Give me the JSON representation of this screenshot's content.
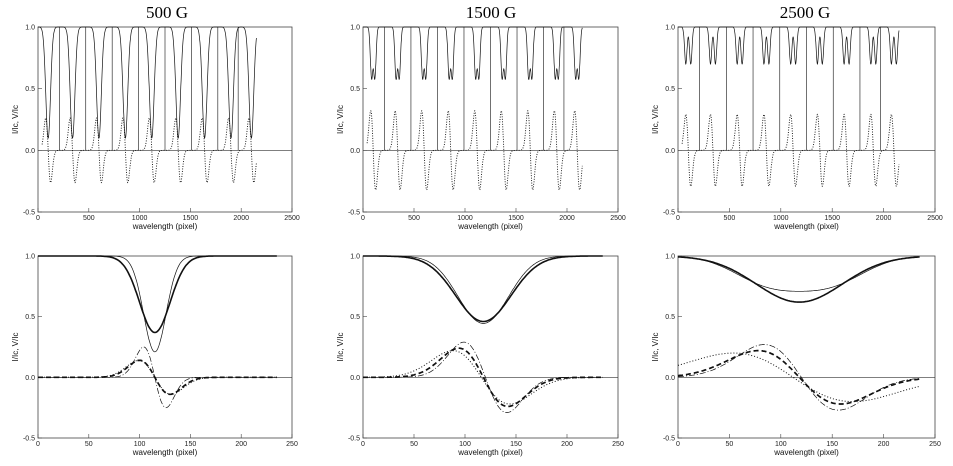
{
  "column_titles": [
    "500 G",
    "1500 G",
    "2500 G"
  ],
  "chart_data": [
    {
      "type": "line",
      "panel": "top",
      "column": 0,
      "title": "500 G",
      "xlabel": "wavelength (pixel)",
      "ylabel": "I/Ic, V/Ic",
      "xlim": [
        0,
        2500
      ],
      "ylim": [
        -0.5,
        1.0
      ],
      "xticks": [
        "0",
        "500",
        "1000",
        "1500",
        "2000",
        "2500"
      ],
      "yticks": [
        "-0.5",
        "0.0",
        "0.5",
        "1.0"
      ],
      "line_centers": [
        100,
        340,
        600,
        860,
        1120,
        1380,
        1640,
        1900,
        2100
      ],
      "intensity_core": 0.1,
      "stokes_v_amplitude": 0.27
    },
    {
      "type": "line",
      "panel": "top",
      "column": 1,
      "title": "1500 G",
      "xlabel": "wavelength (pixel)",
      "ylabel": "I/Ic, V/Ic",
      "xlim": [
        0,
        2500
      ],
      "ylim": [
        -0.5,
        1.0
      ],
      "xticks": [
        "0",
        "500",
        "1000",
        "1500",
        "2000",
        "2500"
      ],
      "yticks": [
        "-0.5",
        "0.0",
        "0.5",
        "1.0"
      ],
      "line_centers": [
        100,
        340,
        600,
        860,
        1120,
        1380,
        1640,
        1900,
        2100
      ],
      "intensity_core": 0.45,
      "stokes_v_amplitude": 0.33
    },
    {
      "type": "line",
      "panel": "top",
      "column": 2,
      "title": "2500 G",
      "xlabel": "wavelength (pixel)",
      "ylabel": "I/Ic, V/Ic",
      "xlim": [
        0,
        2500
      ],
      "ylim": [
        -0.5,
        1.0
      ],
      "xticks": [
        "0",
        "500",
        "1000",
        "1500",
        "2000",
        "2500"
      ],
      "yticks": [
        "-0.5",
        "0.0",
        "0.5",
        "1.0"
      ],
      "line_centers": [
        100,
        340,
        600,
        860,
        1120,
        1380,
        1640,
        1900,
        2100
      ],
      "intensity_core": 0.6,
      "stokes_v_amplitude": 0.3
    },
    {
      "type": "line",
      "panel": "bottom",
      "column": 0,
      "xlabel": "wavelength (pixel)",
      "ylabel": "I/Ic, V/Ic",
      "xlim": [
        0,
        250
      ],
      "ylim": [
        -0.5,
        1.0
      ],
      "xticks": [
        "0",
        "50",
        "100",
        "150",
        "200",
        "250"
      ],
      "yticks": [
        "-0.5",
        "0.0",
        "0.5",
        "1.0"
      ],
      "series": [
        {
          "style": "solid-thick",
          "kind": "I",
          "center": 115,
          "depth": 0.63,
          "width": 15
        },
        {
          "style": "solid-thin",
          "kind": "I",
          "center": 115,
          "depth": 0.79,
          "width": 11
        },
        {
          "style": "dashed-thick",
          "kind": "V",
          "center": 115,
          "amp": 0.14,
          "width": 15
        },
        {
          "style": "dotted",
          "kind": "V",
          "center": 115,
          "amp": 0.14,
          "width": 16
        },
        {
          "style": "dashdot-thin",
          "kind": "V",
          "center": 115,
          "amp": 0.25,
          "width": 11
        }
      ]
    },
    {
      "type": "line",
      "panel": "bottom",
      "column": 1,
      "xlabel": "wavelength (pixel)",
      "ylabel": "I/Ic, V/Ic",
      "xlim": [
        0,
        250
      ],
      "ylim": [
        -0.5,
        1.0
      ],
      "xticks": [
        "0",
        "50",
        "100",
        "150",
        "200",
        "250"
      ],
      "yticks": [
        "-0.5",
        "0.0",
        "0.5",
        "1.0"
      ],
      "series": [
        {
          "style": "solid-thick",
          "kind": "I",
          "center": 118,
          "depth": 0.54,
          "width": 27
        },
        {
          "style": "solid-thin",
          "kind": "I",
          "center": 118,
          "depth": 0.56,
          "width": 22,
          "split": 10
        },
        {
          "style": "dashed-thick",
          "kind": "V",
          "center": 118,
          "amp": 0.24,
          "width": 24
        },
        {
          "style": "dotted",
          "kind": "V",
          "center": 116,
          "amp": 0.22,
          "width": 28
        },
        {
          "style": "dashdot-thin",
          "kind": "V",
          "center": 120,
          "amp": 0.29,
          "width": 21
        }
      ]
    },
    {
      "type": "line",
      "panel": "bottom",
      "column": 2,
      "xlabel": "wavelength (pixel)",
      "ylabel": "I/Ic, V/Ic",
      "xlim": [
        0,
        250
      ],
      "ylim": [
        -0.5,
        1.0
      ],
      "xticks": [
        "0",
        "50",
        "100",
        "150",
        "200",
        "250"
      ],
      "yticks": [
        "-0.5",
        "0.0",
        "0.5",
        "1.0"
      ],
      "series": [
        {
          "style": "solid-thick",
          "kind": "I",
          "center": 118,
          "depth": 0.38,
          "width": 42
        },
        {
          "style": "solid-thin",
          "kind": "I",
          "center": 118,
          "depth": 0.4,
          "width": 33,
          "split": 30
        },
        {
          "style": "dashed-thick",
          "kind": "V",
          "center": 118,
          "amp": 0.22,
          "width": 40
        },
        {
          "style": "dotted",
          "kind": "V",
          "center": 112,
          "amp": 0.2,
          "width": 58
        },
        {
          "style": "dashdot-thin",
          "kind": "V",
          "center": 120,
          "amp": 0.27,
          "width": 36
        }
      ]
    }
  ]
}
